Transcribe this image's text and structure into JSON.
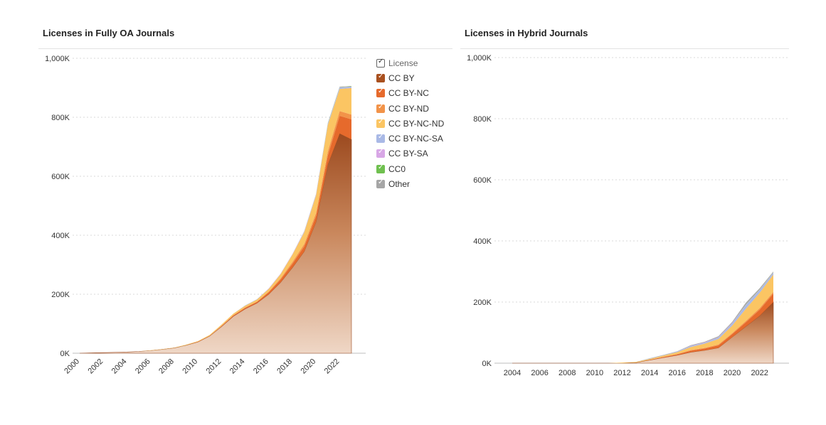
{
  "chart_data": [
    {
      "type": "area",
      "title": "Licenses in Fully OA Journals",
      "stacked": true,
      "x": [
        2000,
        2001,
        2002,
        2003,
        2004,
        2005,
        2006,
        2007,
        2008,
        2009,
        2010,
        2011,
        2012,
        2013,
        2014,
        2015,
        2016,
        2017,
        2018,
        2019,
        2020,
        2021,
        2022,
        2023
      ],
      "xticks": [
        "2000",
        "2002",
        "2004",
        "2006",
        "2008",
        "2010",
        "2012",
        "2014",
        "2016",
        "2018",
        "2020",
        "2022"
      ],
      "yticks": [
        "0K",
        "200K",
        "400K",
        "600K",
        "800K",
        "1,000K"
      ],
      "ylim": [
        0,
        1000000
      ],
      "series": [
        {
          "name": "CC BY",
          "values": [
            0,
            1000,
            2000,
            3000,
            4000,
            6000,
            9000,
            13000,
            18000,
            27000,
            38000,
            58000,
            90000,
            125000,
            150000,
            170000,
            200000,
            240000,
            290000,
            345000,
            445000,
            640000,
            745000,
            725000
          ]
        },
        {
          "name": "CC BY-NC",
          "values": [
            0,
            0,
            0,
            0,
            0,
            0,
            0,
            0,
            0,
            0,
            1000,
            1000,
            2000,
            3000,
            4000,
            4000,
            7000,
            10000,
            13000,
            17000,
            20000,
            30000,
            60000,
            68000
          ]
        },
        {
          "name": "CC BY-ND",
          "values": [
            0,
            0,
            0,
            0,
            0,
            0,
            0,
            0,
            0,
            0,
            0,
            0,
            1000,
            1000,
            1000,
            1000,
            2000,
            4000,
            6000,
            8000,
            10000,
            14000,
            16000,
            16000
          ]
        },
        {
          "name": "CC BY-NC-ND",
          "values": [
            0,
            0,
            0,
            0,
            0,
            0,
            1000,
            1000,
            1000,
            2000,
            2000,
            3000,
            4000,
            5000,
            6000,
            7000,
            9000,
            14000,
            25000,
            40000,
            60000,
            90000,
            75000,
            90000
          ]
        },
        {
          "name": "CC BY-NC-SA",
          "values": [
            0,
            0,
            0,
            0,
            0,
            0,
            0,
            0,
            0,
            0,
            0,
            0,
            0,
            0,
            1000,
            1000,
            1000,
            1000,
            1000,
            2000,
            3000,
            4000,
            5000,
            4000
          ]
        },
        {
          "name": "CC BY-SA",
          "values": [
            0,
            0,
            0,
            0,
            0,
            0,
            0,
            0,
            0,
            0,
            0,
            0,
            0,
            0,
            0,
            0,
            1000,
            1000,
            1000,
            1000,
            1000,
            1000,
            1000,
            1000
          ]
        },
        {
          "name": "CC0",
          "values": [
            0,
            0,
            0,
            0,
            0,
            0,
            0,
            0,
            0,
            0,
            0,
            0,
            0,
            0,
            0,
            0,
            0,
            0,
            0,
            0,
            0,
            1000,
            1000,
            1000
          ]
        },
        {
          "name": "Other",
          "values": [
            0,
            0,
            0,
            0,
            0,
            0,
            0,
            0,
            0,
            0,
            0,
            0,
            0,
            0,
            0,
            0,
            0,
            0,
            0,
            1000,
            1000,
            1000,
            1000,
            1000
          ]
        }
      ],
      "legend": {
        "title": "License",
        "position": "right"
      }
    },
    {
      "type": "area",
      "title": "Licenses in Hybrid Journals",
      "stacked": true,
      "x": [
        2004,
        2005,
        2006,
        2007,
        2008,
        2009,
        2010,
        2011,
        2012,
        2013,
        2014,
        2015,
        2016,
        2017,
        2018,
        2019,
        2020,
        2021,
        2022,
        2023
      ],
      "xticks": [
        "2004",
        "2006",
        "2008",
        "2010",
        "2012",
        "2014",
        "2016",
        "2018",
        "2020",
        "2022"
      ],
      "yticks": [
        "0K",
        "200K",
        "400K",
        "600K",
        "800K",
        "1,000K"
      ],
      "ylim": [
        0,
        1000000
      ],
      "series": [
        {
          "name": "CC BY",
          "values": [
            0,
            0,
            0,
            0,
            0,
            0,
            0,
            0,
            0,
            2000,
            10000,
            18000,
            26000,
            36000,
            42000,
            50000,
            85000,
            120000,
            155000,
            200000
          ]
        },
        {
          "name": "CC BY-NC",
          "values": [
            0,
            0,
            0,
            0,
            0,
            0,
            0,
            0,
            0,
            0,
            1000,
            2000,
            3000,
            5000,
            6000,
            8000,
            10000,
            14000,
            20000,
            28000
          ]
        },
        {
          "name": "CC BY-ND",
          "values": [
            0,
            0,
            0,
            0,
            0,
            0,
            0,
            0,
            0,
            0,
            0,
            1000,
            1000,
            2000,
            2000,
            3000,
            3000,
            4000,
            5000,
            5000
          ]
        },
        {
          "name": "CC BY-NC-ND",
          "values": [
            0,
            0,
            0,
            0,
            0,
            0,
            0,
            0,
            2000,
            2000,
            3000,
            4000,
            6000,
            10000,
            14000,
            18000,
            25000,
            40000,
            50000,
            57000
          ]
        },
        {
          "name": "CC BY-NC-SA",
          "values": [
            0,
            0,
            0,
            0,
            0,
            0,
            0,
            0,
            0,
            0,
            1000,
            1000,
            2000,
            3000,
            3000,
            5000,
            7000,
            12000,
            9000,
            6000
          ]
        },
        {
          "name": "CC BY-SA",
          "values": [
            0,
            0,
            0,
            0,
            0,
            0,
            0,
            0,
            0,
            0,
            0,
            0,
            0,
            1000,
            1000,
            1000,
            1000,
            1000,
            1000,
            1000
          ]
        },
        {
          "name": "CC0",
          "values": [
            0,
            0,
            0,
            0,
            0,
            0,
            0,
            0,
            0,
            0,
            0,
            0,
            0,
            0,
            0,
            0,
            0,
            1000,
            1000,
            1000
          ]
        },
        {
          "name": "Other",
          "values": [
            0,
            0,
            0,
            0,
            0,
            0,
            0,
            0,
            0,
            0,
            1000,
            1000,
            1000,
            2000,
            2000,
            3000,
            4000,
            6000,
            4000,
            2000
          ]
        }
      ]
    }
  ],
  "colors": {
    "CC BY": "#a9501f",
    "CC BY-NC": "#e66a2c",
    "CC BY-ND": "#f29349",
    "CC BY-NC-ND": "#fbc563",
    "CC BY-NC-SA": "#a9b9e6",
    "CC BY-SA": "#d8a7e6",
    "CC0": "#6fc04f",
    "Other": "#a6a6a6"
  }
}
